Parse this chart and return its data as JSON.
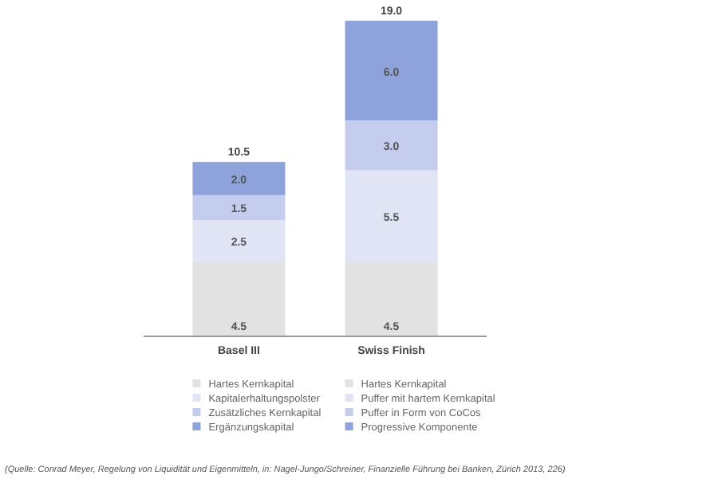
{
  "chart_data": {
    "type": "bar",
    "stacked": true,
    "categories": [
      "Basel III",
      "Swiss Finish"
    ],
    "series": [
      {
        "name": "Hartes Kernkapital",
        "color": "#e2e2e2",
        "values": [
          4.5,
          null
        ],
        "value_labels": [
          "4.5",
          null
        ]
      },
      {
        "name": "Kapitalerhaltungspolster",
        "color": "#e0e4f4",
        "values": [
          2.5,
          null
        ],
        "value_labels": [
          "2.5",
          null
        ]
      },
      {
        "name": "Zusätzliches Kernkapital",
        "color": "#c5cdee",
        "values": [
          1.5,
          null
        ],
        "value_labels": [
          "1.5",
          null
        ]
      },
      {
        "name": "Ergänzungskapital",
        "color": "#8ea2db",
        "values": [
          2.0,
          null
        ],
        "value_labels": [
          "2.0",
          null
        ]
      },
      {
        "name": "Hartes Kernkapital",
        "color": "#e2e2e2",
        "values": [
          null,
          4.5
        ],
        "value_labels": [
          null,
          "4.5"
        ]
      },
      {
        "name": "Puffer mit hartem Kernkapital",
        "color": "#e0e4f4",
        "values": [
          null,
          5.5
        ],
        "value_labels": [
          null,
          "5.5"
        ]
      },
      {
        "name": "Puffer in Form von CoCos",
        "color": "#c5cdee",
        "values": [
          null,
          3.0
        ],
        "value_labels": [
          null,
          "3.0"
        ]
      },
      {
        "name": "Progressive Komponente",
        "color": "#8ea2db",
        "values": [
          null,
          6.0
        ],
        "value_labels": [
          null,
          "6.0"
        ]
      }
    ],
    "totals": [
      "10.5",
      "19.0"
    ],
    "legend": "bottom",
    "annotations": [
      "(Quelle: Conrad Meyer, Regelung von Liquidität und Eigenmitteln, in: Nagel-Jungo/Schreiner, Finanzielle Führung bei Banken, Zürich 2013, 226)"
    ]
  }
}
